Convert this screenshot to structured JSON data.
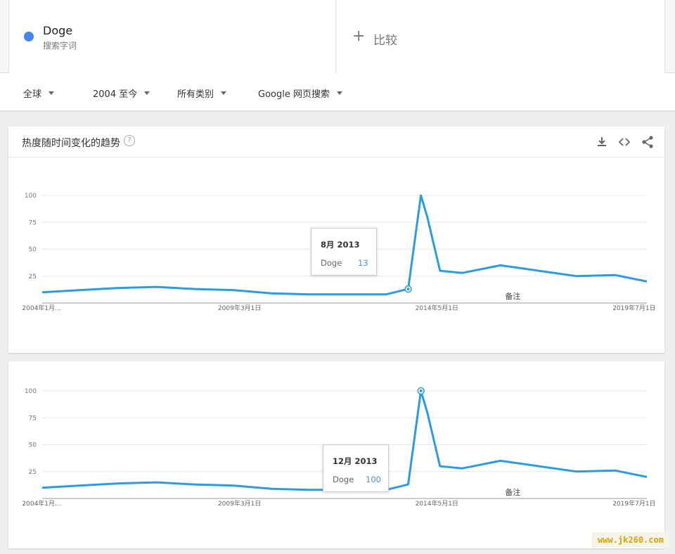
{
  "search_term": {
    "name": "Doge",
    "type": "搜索字词",
    "color": "#4285f4"
  },
  "compare": {
    "label": "比较"
  },
  "filters": {
    "region": "全球",
    "time": "2004 至今",
    "category": "所有类别",
    "search_type": "Google 网页搜索"
  },
  "card": {
    "title": "热度随时间变化的趋势",
    "help": "?"
  },
  "note_label": "备注",
  "chart_data": [
    {
      "type": "line",
      "series": [
        {
          "name": "Doge",
          "color": "#2d9be0",
          "x": [
            "2004-01",
            "2005-01",
            "2006-01",
            "2007-01",
            "2008-01",
            "2009-01",
            "2010-01",
            "2011-01",
            "2012-01",
            "2013-01",
            "2013-08",
            "2013-12",
            "2014-02",
            "2014-06",
            "2015-01",
            "2016-01",
            "2017-01",
            "2018-01",
            "2019-01",
            "2019-11"
          ],
          "values": [
            10,
            12,
            14,
            15,
            13,
            12,
            9,
            8,
            8,
            8,
            13,
            100,
            80,
            30,
            28,
            35,
            30,
            25,
            26,
            20
          ]
        }
      ],
      "ytick_labels": [
        "100",
        "75",
        "50",
        "25"
      ],
      "xtick_labels": [
        "2004年1月...",
        "2009年3月1日",
        "2014年5月1日",
        "2019年7月1日"
      ],
      "ylim": [
        0,
        100
      ],
      "grid": true,
      "tooltip": {
        "date": "8月 2013",
        "term": "Doge",
        "value": "13"
      }
    },
    {
      "type": "line",
      "series": [
        {
          "name": "Doge",
          "color": "#2d9be0",
          "x": [
            "2004-01",
            "2005-01",
            "2006-01",
            "2007-01",
            "2008-01",
            "2009-01",
            "2010-01",
            "2011-01",
            "2012-01",
            "2013-01",
            "2013-08",
            "2013-12",
            "2014-02",
            "2014-06",
            "2015-01",
            "2016-01",
            "2017-01",
            "2018-01",
            "2019-01",
            "2019-11"
          ],
          "values": [
            10,
            12,
            14,
            15,
            13,
            12,
            9,
            8,
            8,
            8,
            13,
            100,
            80,
            30,
            28,
            35,
            30,
            25,
            26,
            20
          ]
        }
      ],
      "ytick_labels": [
        "100",
        "75",
        "50",
        "25"
      ],
      "xtick_labels": [
        "2004年1月...",
        "2009年3月1日",
        "2014年5月1日",
        "2019年7月1日"
      ],
      "ylim": [
        0,
        100
      ],
      "grid": true,
      "tooltip": {
        "date": "12月 2013",
        "term": "Doge",
        "value": "100"
      }
    }
  ],
  "watermark": "www.jk260.com"
}
